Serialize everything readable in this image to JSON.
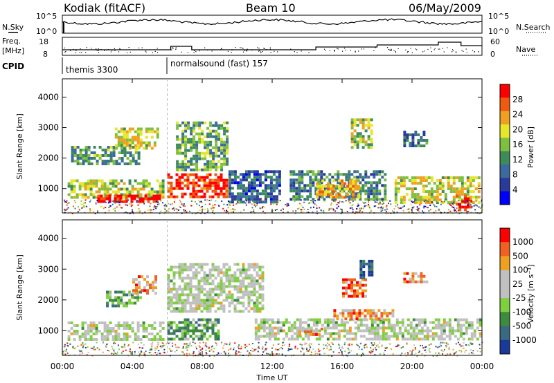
{
  "header": {
    "station": "Kodiak (fitACF)",
    "beam": "Beam 10",
    "date": "06/May/2009"
  },
  "panels": {
    "noise": {
      "left_label": "N.Sky",
      "right_label": "N.Search",
      "left_ticks": [
        "10^5",
        "10^0"
      ],
      "right_ticks": [
        "10^5",
        "10^0"
      ]
    },
    "freq": {
      "left_label_1": "Freq.",
      "left_label_2": "[MHz]",
      "right_label": "Nave",
      "left_ticks": [
        "18",
        "8"
      ],
      "right_ticks": [
        "60",
        "0"
      ]
    },
    "cpid": {
      "label": "CPID",
      "segments": [
        "themis 3300",
        "normalsound (fast) 157"
      ]
    }
  },
  "colors": {
    "power_scale": [
      "#0000ff",
      "#2a3a9a",
      "#3a6aa0",
      "#3e8a5a",
      "#7fbf3f",
      "#e6e62a",
      "#f0a020",
      "#f05a10",
      "#ff0000"
    ],
    "velocity_scale": [
      "#1a3a9a",
      "#3a6a80",
      "#3e8a40",
      "#7fcf3f",
      "#c0c0c0",
      "#c0c0c0",
      "#f0a020",
      "#f06020",
      "#ff0000"
    ]
  },
  "chart_data": [
    {
      "type": "heatmap",
      "name_label": "Power",
      "ylabel": "Slant Range [km]",
      "xlabel": "Time UT",
      "x_ticks": [
        "00:00",
        "04:00",
        "08:00",
        "12:00",
        "16:00",
        "20:00",
        "00:00"
      ],
      "y_ticks": [
        "1000",
        "2000",
        "3000",
        "4000"
      ],
      "ylim": [
        200,
        4600
      ],
      "colorbar": {
        "label": "Power [dB]",
        "ticks": [
          "4",
          "8",
          "12",
          "16",
          "20",
          "24",
          "28"
        ]
      },
      "blobs": [
        {
          "t0": 0.3,
          "t1": 5.8,
          "r0": 650,
          "r1": 1300,
          "level": 0.55
        },
        {
          "t0": 2.0,
          "t1": 5.8,
          "r0": 550,
          "r1": 800,
          "level": 0.95
        },
        {
          "t0": 0.5,
          "t1": 4.5,
          "r0": 1800,
          "r1": 2400,
          "level": 0.4
        },
        {
          "t0": 3.0,
          "t1": 5.5,
          "r0": 2300,
          "r1": 3000,
          "level": 0.6
        },
        {
          "t0": 6.0,
          "t1": 9.5,
          "r0": 650,
          "r1": 1500,
          "level": 0.9
        },
        {
          "t0": 6.5,
          "t1": 9.5,
          "r0": 1600,
          "r1": 3200,
          "level": 0.45
        },
        {
          "t0": 9.5,
          "t1": 12.5,
          "r0": 500,
          "r1": 1600,
          "level": 0.25
        },
        {
          "t0": 13.0,
          "t1": 18.5,
          "r0": 600,
          "r1": 1600,
          "level": 0.35
        },
        {
          "t0": 14.5,
          "t1": 17.0,
          "r0": 700,
          "r1": 1300,
          "level": 0.7
        },
        {
          "t0": 16.5,
          "t1": 17.8,
          "r0": 2300,
          "r1": 3300,
          "level": 0.55
        },
        {
          "t0": 19.0,
          "t1": 23.9,
          "r0": 500,
          "r1": 1400,
          "level": 0.6
        },
        {
          "t0": 22.5,
          "t1": 23.5,
          "r0": 300,
          "r1": 800,
          "level": 0.95
        },
        {
          "t0": 19.5,
          "t1": 21.0,
          "r0": 2400,
          "r1": 2900,
          "level": 0.3
        }
      ]
    },
    {
      "type": "heatmap",
      "name_label": "Velocity",
      "ylabel": "Slant Range [km]",
      "xlabel": "Time UT",
      "x_ticks": [
        "00:00",
        "04:00",
        "08:00",
        "12:00",
        "16:00",
        "20:00",
        "00:00"
      ],
      "y_ticks": [
        "1000",
        "2000",
        "3000",
        "4000"
      ],
      "ylim": [
        200,
        4600
      ],
      "colorbar": {
        "label": "Velocity [m s⁻¹]",
        "ticks": [
          "1000",
          "500",
          "100",
          "25",
          "-25",
          "-100",
          "-500",
          "-1000"
        ]
      },
      "blobs": [
        {
          "t0": 0.3,
          "t1": 5.8,
          "r0": 650,
          "r1": 1300,
          "level": 0.5
        },
        {
          "t0": 2.5,
          "t1": 4.5,
          "r0": 1800,
          "r1": 2300,
          "level": 0.3
        },
        {
          "t0": 4.0,
          "t1": 5.5,
          "r0": 2200,
          "r1": 2800,
          "level": 0.75
        },
        {
          "t0": 6.0,
          "t1": 9.0,
          "r0": 700,
          "r1": 1400,
          "level": 0.3
        },
        {
          "t0": 6.0,
          "t1": 11.5,
          "r0": 1600,
          "r1": 3200,
          "level": 0.5
        },
        {
          "t0": 11.0,
          "t1": 24.0,
          "r0": 700,
          "r1": 1400,
          "level": 0.5
        },
        {
          "t0": 16.0,
          "t1": 17.5,
          "r0": 2100,
          "r1": 2700,
          "level": 0.8
        },
        {
          "t0": 17.0,
          "t1": 17.8,
          "r0": 2700,
          "r1": 3300,
          "level": 0.1
        },
        {
          "t0": 19.5,
          "t1": 21.0,
          "r0": 2500,
          "r1": 2900,
          "level": 0.75
        },
        {
          "t0": 15.5,
          "t1": 19.0,
          "r0": 1300,
          "r1": 1700,
          "level": 0.75
        },
        {
          "t0": 13.5,
          "t1": 15.0,
          "r0": 800,
          "r1": 1100,
          "level": 0.75
        }
      ]
    }
  ]
}
